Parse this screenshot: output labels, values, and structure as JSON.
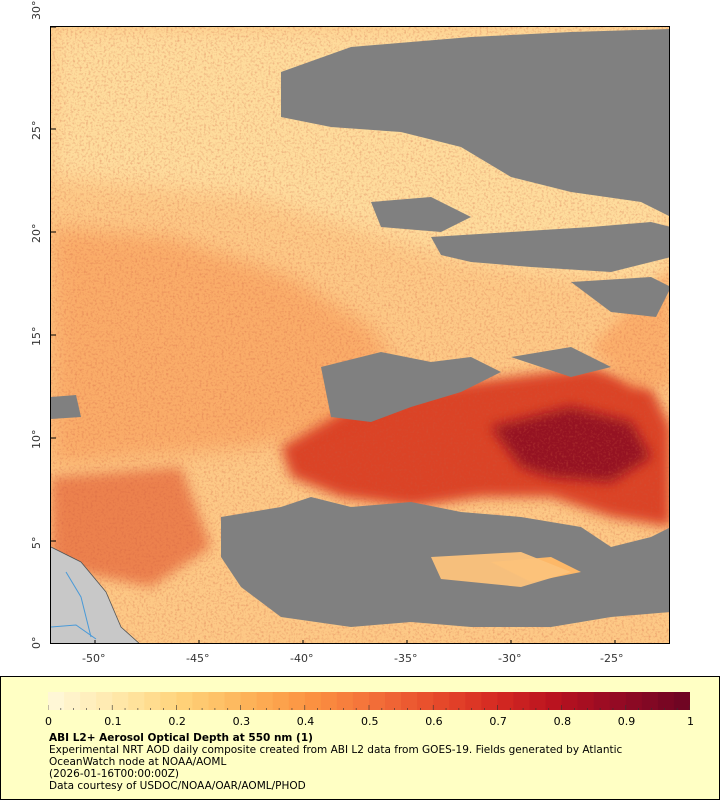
{
  "map": {
    "y_ticks": [
      "30°",
      "25°",
      "20°",
      "15°",
      "10°",
      "5°",
      "0°"
    ],
    "x_ticks": [
      "-50°",
      "-45°",
      "-40°",
      "-35°",
      "-30°",
      "-25°"
    ],
    "colors": {
      "no_data": "#808080",
      "land": "#c8c8c8",
      "ocean_line": "#4a9ad8"
    }
  },
  "legend": {
    "colorbar_ticks": [
      "0",
      "0.1",
      "0.2",
      "0.3",
      "0.4",
      "0.5",
      "0.6",
      "0.7",
      "0.8",
      "0.9",
      "1"
    ],
    "colorbar_range": [
      0,
      1
    ],
    "colorbar_colors": [
      "#fff7d6",
      "#ffe8a8",
      "#ffd27a",
      "#fdb55a",
      "#fc9442",
      "#f4723a",
      "#e84d2c",
      "#d62a22",
      "#b8121f",
      "#930a24",
      "#700523"
    ],
    "title": "ABI L2+ Aerosol Optical Depth at 550 nm (1)",
    "line1": "Experimental NRT AOD daily composite created from ABI L2 data from GOES-19. Fields generated by Atlantic",
    "line2": "OceanWatch node at NOAA/AOML",
    "line3": "(2026-01-16T00:00:00Z)",
    "line4": "Data courtesy of USDOC/NOAA/OAR/AOML/PHOD"
  }
}
